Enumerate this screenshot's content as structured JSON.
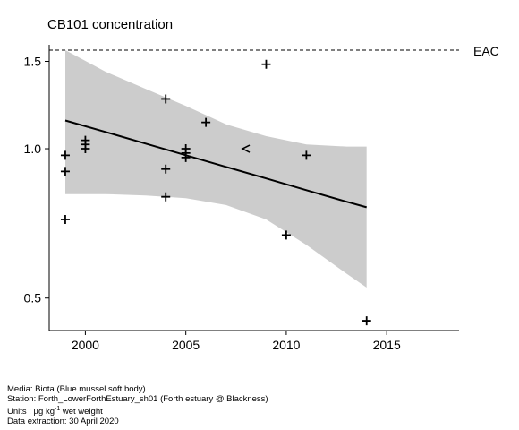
{
  "title": "CB101 concentration",
  "footer": {
    "media": "Media: Biota (Blue mussel soft body)",
    "station": "Station: Forth_LowerForthEstuary_sh01 (Forth estuary @ Blackness)",
    "units_prefix": "Units : µg kg",
    "units_sup": "-1",
    "units_suffix": " wet weight",
    "extraction": "Data extraction: 30 April 2020"
  },
  "chart_data": {
    "type": "scatter",
    "title": "CB101 concentration",
    "xlabel": "",
    "ylabel": "",
    "y_scale": "log",
    "xlim": [
      1998.2,
      2018.6
    ],
    "ylim": [
      0.43,
      1.62
    ],
    "x_ticks": [
      2000,
      2005,
      2010,
      2015
    ],
    "y_ticks": [
      0.5,
      1.0,
      1.5
    ],
    "y_tick_labels": [
      "0.5",
      "1.0",
      "1.5"
    ],
    "grid": false,
    "eac": {
      "label": "EAC",
      "value": 1.58
    },
    "points": [
      {
        "x": 1999,
        "y": 0.72,
        "marker": "+"
      },
      {
        "x": 1999,
        "y": 0.9,
        "marker": "+"
      },
      {
        "x": 1999,
        "y": 0.97,
        "marker": "+"
      },
      {
        "x": 2000,
        "y": 1.0,
        "marker": "+"
      },
      {
        "x": 2000,
        "y": 1.02,
        "marker": "+"
      },
      {
        "x": 2000,
        "y": 1.04,
        "marker": "+"
      },
      {
        "x": 2004,
        "y": 0.8,
        "marker": "+"
      },
      {
        "x": 2004,
        "y": 0.91,
        "marker": "+"
      },
      {
        "x": 2004,
        "y": 1.26,
        "marker": "+"
      },
      {
        "x": 2005,
        "y": 0.96,
        "marker": "+"
      },
      {
        "x": 2005,
        "y": 0.98,
        "marker": "+"
      },
      {
        "x": 2005,
        "y": 1.0,
        "marker": "+"
      },
      {
        "x": 2006,
        "y": 1.13,
        "marker": "+"
      },
      {
        "x": 2008,
        "y": 1.0,
        "marker": "<"
      },
      {
        "x": 2009,
        "y": 1.48,
        "marker": "+"
      },
      {
        "x": 2010,
        "y": 0.67,
        "marker": "+"
      },
      {
        "x": 2011,
        "y": 0.97,
        "marker": "+"
      },
      {
        "x": 2014,
        "y": 0.45,
        "marker": "+"
      }
    ],
    "trend": {
      "x": [
        1999,
        2001,
        2003,
        2005,
        2007,
        2009,
        2011,
        2013,
        2014
      ],
      "fit": [
        1.14,
        1.081,
        1.024,
        0.97,
        0.919,
        0.871,
        0.825,
        0.782,
        0.762
      ],
      "lower": [
        0.81,
        0.81,
        0.805,
        0.795,
        0.77,
        0.72,
        0.64,
        0.56,
        0.525
      ],
      "upper": [
        1.58,
        1.43,
        1.32,
        1.22,
        1.12,
        1.06,
        1.02,
        1.01,
        1.01
      ]
    },
    "colors": {
      "band": "#cccccc",
      "line": "#000000"
    }
  }
}
